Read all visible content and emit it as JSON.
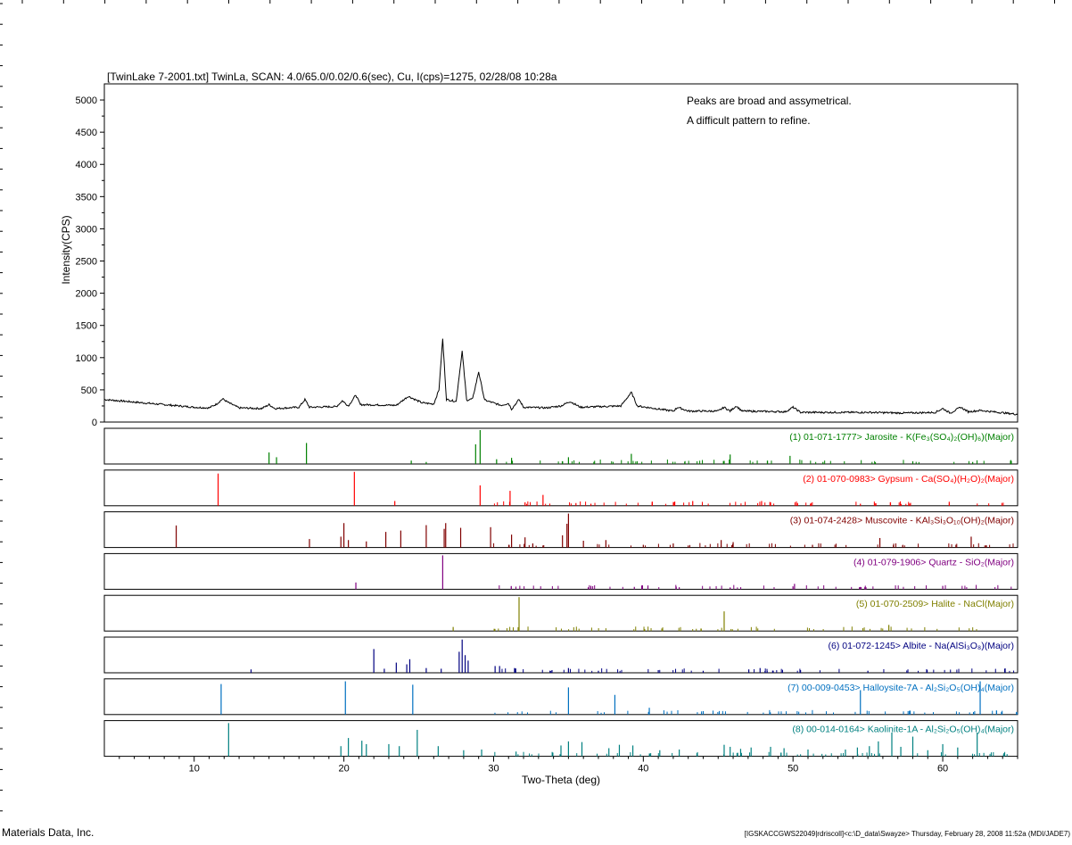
{
  "header": "[TwinLake 7-2001.txt] TwinLa, SCAN: 4.0/65.0/0.02/0.6(sec), Cu, I(cps)=1275, 02/28/08 10:28a",
  "annotations": [
    "Peaks are broad and assymetrical.",
    "A difficult pattern to refine."
  ],
  "footer_left": "Materials Data, Inc.",
  "footer_right": "[IGSKACCGWS22049|rdriscoll]<c:\\D_data\\Swayze> Thursday, February 28, 2008 11:52a (MDI/JADE7)",
  "chart_data": {
    "type": "line",
    "xlabel": "Two-Theta (deg)",
    "ylabel": "Intensity(CPS)",
    "xlim": [
      4,
      65
    ],
    "ylim": [
      0,
      5250
    ],
    "xticks": [
      10,
      20,
      30,
      40,
      50,
      60
    ],
    "yticks": [
      0,
      500,
      1000,
      1500,
      2000,
      2500,
      3000,
      3500,
      4000,
      4500,
      5000
    ],
    "series": [
      {
        "points": [
          [
            4,
            350
          ],
          [
            5,
            330
          ],
          [
            6,
            310
          ],
          [
            7,
            290
          ],
          [
            8,
            270
          ],
          [
            9,
            250
          ],
          [
            10,
            230
          ],
          [
            11,
            220
          ],
          [
            11.5,
            280
          ],
          [
            11.9,
            360
          ],
          [
            12.3,
            300
          ],
          [
            13,
            220
          ],
          [
            14.5,
            210
          ],
          [
            15,
            270
          ],
          [
            15.4,
            210
          ],
          [
            17,
            230
          ],
          [
            17.4,
            350
          ],
          [
            17.7,
            230
          ],
          [
            19.5,
            240
          ],
          [
            19.9,
            330
          ],
          [
            20.3,
            250
          ],
          [
            20.8,
            420
          ],
          [
            21.1,
            270
          ],
          [
            23.5,
            260
          ],
          [
            24.3,
            400
          ],
          [
            25.2,
            300
          ],
          [
            26.0,
            280
          ],
          [
            26.35,
            500
          ],
          [
            26.6,
            1290
          ],
          [
            26.85,
            350
          ],
          [
            27.5,
            320
          ],
          [
            27.9,
            1100
          ],
          [
            28.2,
            340
          ],
          [
            28.6,
            360
          ],
          [
            29.0,
            780
          ],
          [
            29.4,
            340
          ],
          [
            30.5,
            260
          ],
          [
            31.0,
            290
          ],
          [
            31.2,
            200
          ],
          [
            31.7,
            350
          ],
          [
            32.0,
            230
          ],
          [
            33.5,
            220
          ],
          [
            34.5,
            250
          ],
          [
            35.1,
            320
          ],
          [
            35.8,
            230
          ],
          [
            38.5,
            250
          ],
          [
            39.2,
            460
          ],
          [
            39.6,
            250
          ],
          [
            42.0,
            170
          ],
          [
            42.3,
            230
          ],
          [
            43.0,
            170
          ],
          [
            45.0,
            170
          ],
          [
            45.4,
            230
          ],
          [
            45.8,
            170
          ],
          [
            46.2,
            250
          ],
          [
            46.6,
            170
          ],
          [
            49.5,
            160
          ],
          [
            50.0,
            230
          ],
          [
            50.5,
            150
          ],
          [
            55.0,
            150
          ],
          [
            57.5,
            140
          ],
          [
            59.5,
            150
          ],
          [
            60.0,
            210
          ],
          [
            60.5,
            140
          ],
          [
            61.2,
            230
          ],
          [
            61.7,
            160
          ],
          [
            62.5,
            180
          ],
          [
            65,
            120
          ]
        ]
      }
    ],
    "reference_patterns": [
      {
        "label": "(1) 01-071-1777> Jarosite - K(Fe₃(SO₄)₂(OH)₆)(Major)",
        "color": "#008000",
        "sticks": [
          [
            15.0,
            0.34
          ],
          [
            15.5,
            0.2
          ],
          [
            17.5,
            0.62
          ],
          [
            24.5,
            0.1
          ],
          [
            25.5,
            0.06
          ],
          [
            28.8,
            0.58
          ],
          [
            29.1,
            1.0
          ],
          [
            30.2,
            0.14
          ],
          [
            31.2,
            0.18
          ],
          [
            35.0,
            0.2
          ],
          [
            39.2,
            0.3
          ],
          [
            45.8,
            0.28
          ],
          [
            49.8,
            0.24
          ],
          [
            52.0,
            0.06
          ],
          [
            55.5,
            0.05
          ],
          [
            58.0,
            0.08
          ],
          [
            62.0,
            0.06
          ]
        ]
      },
      {
        "label": "(2) 01-070-0983> Gypsum - Ca(SO₄)(H₂O)₂(Major)",
        "color": "#ff0000",
        "sticks": [
          [
            11.6,
            0.95
          ],
          [
            20.7,
            1.0
          ],
          [
            23.4,
            0.14
          ],
          [
            29.1,
            0.6
          ],
          [
            31.1,
            0.44
          ],
          [
            32.1,
            0.1
          ],
          [
            33.3,
            0.32
          ],
          [
            35.5,
            0.08
          ],
          [
            36.5,
            0.06
          ],
          [
            40.6,
            0.12
          ],
          [
            43.3,
            0.14
          ],
          [
            47.9,
            0.14
          ],
          [
            48.5,
            0.1
          ],
          [
            50.3,
            0.08
          ],
          [
            51.2,
            0.08
          ],
          [
            54.5,
            0.06
          ],
          [
            56.5,
            0.1
          ]
        ]
      },
      {
        "label": "(3) 01-074-2428> Muscovite - KAl₃Si₃O₁₀(OH)₂(Major)",
        "color": "#800000",
        "sticks": [
          [
            8.8,
            0.65
          ],
          [
            17.7,
            0.25
          ],
          [
            19.8,
            0.32
          ],
          [
            20.0,
            0.72
          ],
          [
            20.3,
            0.22
          ],
          [
            21.5,
            0.18
          ],
          [
            22.8,
            0.46
          ],
          [
            23.8,
            0.5
          ],
          [
            25.5,
            0.66
          ],
          [
            26.7,
            0.55
          ],
          [
            26.8,
            0.72
          ],
          [
            27.8,
            0.58
          ],
          [
            29.8,
            0.6
          ],
          [
            31.2,
            0.38
          ],
          [
            32.1,
            0.3
          ],
          [
            34.6,
            0.36
          ],
          [
            34.9,
            0.7
          ],
          [
            35.0,
            1.0
          ],
          [
            36.0,
            0.2
          ],
          [
            37.5,
            0.22
          ],
          [
            40.0,
            0.08
          ],
          [
            42.0,
            0.12
          ],
          [
            43.0,
            0.06
          ],
          [
            45.2,
            0.22
          ],
          [
            46.0,
            0.16
          ],
          [
            51.3,
            0.08
          ],
          [
            55.8,
            0.28
          ],
          [
            61.9,
            0.32
          ]
        ]
      },
      {
        "label": "(4) 01-079-1906> Quartz - SiO₂(Major)",
        "color": "#800080",
        "sticks": [
          [
            20.8,
            0.2
          ],
          [
            26.6,
            1.0
          ],
          [
            36.5,
            0.1
          ],
          [
            39.4,
            0.07
          ],
          [
            42.4,
            0.06
          ],
          [
            45.8,
            0.05
          ],
          [
            50.1,
            0.16
          ],
          [
            54.8,
            0.05
          ],
          [
            60.0,
            0.1
          ]
        ]
      },
      {
        "label": "(5) 01-070-2509> Halite - NaCl(Major)",
        "color": "#808000",
        "sticks": [
          [
            27.3,
            0.12
          ],
          [
            31.7,
            1.0
          ],
          [
            45.4,
            0.58
          ],
          [
            56.4,
            0.18
          ]
        ]
      },
      {
        "label": "(6) 01-072-1245> Albite - Na(AlSi₃O₈)(Major)",
        "color": "#000080",
        "sticks": [
          [
            13.8,
            0.1
          ],
          [
            22.0,
            0.7
          ],
          [
            22.7,
            0.12
          ],
          [
            23.5,
            0.3
          ],
          [
            24.2,
            0.25
          ],
          [
            24.4,
            0.4
          ],
          [
            25.5,
            0.14
          ],
          [
            26.5,
            0.12
          ],
          [
            27.7,
            0.62
          ],
          [
            27.9,
            0.98
          ],
          [
            28.1,
            0.52
          ],
          [
            28.3,
            0.36
          ],
          [
            30.1,
            0.2
          ],
          [
            30.4,
            0.2
          ],
          [
            31.4,
            0.14
          ],
          [
            33.9,
            0.08
          ],
          [
            35.0,
            0.14
          ],
          [
            37.0,
            0.06
          ],
          [
            41.0,
            0.08
          ],
          [
            44.0,
            0.06
          ],
          [
            47.8,
            0.14
          ],
          [
            50.5,
            0.08
          ],
          [
            55.0,
            0.06
          ]
        ]
      },
      {
        "label": "(7) 00-009-0453> Halloysite-7A - Al₂Si₂O₅(OH)₄(Major)",
        "color": "#0070c0",
        "sticks": [
          [
            11.8,
            0.9
          ],
          [
            20.1,
            0.98
          ],
          [
            24.6,
            0.88
          ],
          [
            35.0,
            0.8
          ],
          [
            38.1,
            0.58
          ],
          [
            40.4,
            0.2
          ],
          [
            44.0,
            0.1
          ],
          [
            54.5,
            0.72
          ],
          [
            62.5,
            0.98
          ]
        ]
      },
      {
        "label": "(8) 00-014-0164> Kaolinite-1A - Al₂Si₂O₅(OH)₄(Major)",
        "color": "#008080",
        "sticks": [
          [
            12.3,
            0.98
          ],
          [
            19.8,
            0.3
          ],
          [
            20.3,
            0.54
          ],
          [
            21.2,
            0.46
          ],
          [
            21.5,
            0.36
          ],
          [
            23.0,
            0.36
          ],
          [
            23.7,
            0.3
          ],
          [
            24.9,
            0.78
          ],
          [
            26.3,
            0.3
          ],
          [
            28.0,
            0.18
          ],
          [
            29.2,
            0.2
          ],
          [
            31.5,
            0.14
          ],
          [
            34.5,
            0.32
          ],
          [
            35.0,
            0.44
          ],
          [
            35.9,
            0.42
          ],
          [
            37.7,
            0.24
          ],
          [
            38.4,
            0.34
          ],
          [
            39.3,
            0.32
          ],
          [
            41.1,
            0.18
          ],
          [
            42.4,
            0.2
          ],
          [
            45.4,
            0.34
          ],
          [
            45.8,
            0.28
          ],
          [
            46.5,
            0.22
          ],
          [
            47.2,
            0.26
          ],
          [
            48.5,
            0.28
          ],
          [
            49.4,
            0.24
          ],
          [
            51.0,
            0.2
          ],
          [
            53.5,
            0.2
          ],
          [
            54.3,
            0.26
          ],
          [
            55.1,
            0.3
          ],
          [
            55.7,
            0.44
          ],
          [
            56.6,
            0.7
          ],
          [
            57.2,
            0.28
          ],
          [
            58.0,
            0.58
          ],
          [
            59.0,
            0.18
          ],
          [
            60.0,
            0.36
          ],
          [
            61.0,
            0.26
          ],
          [
            62.3,
            0.7
          ]
        ]
      }
    ]
  }
}
